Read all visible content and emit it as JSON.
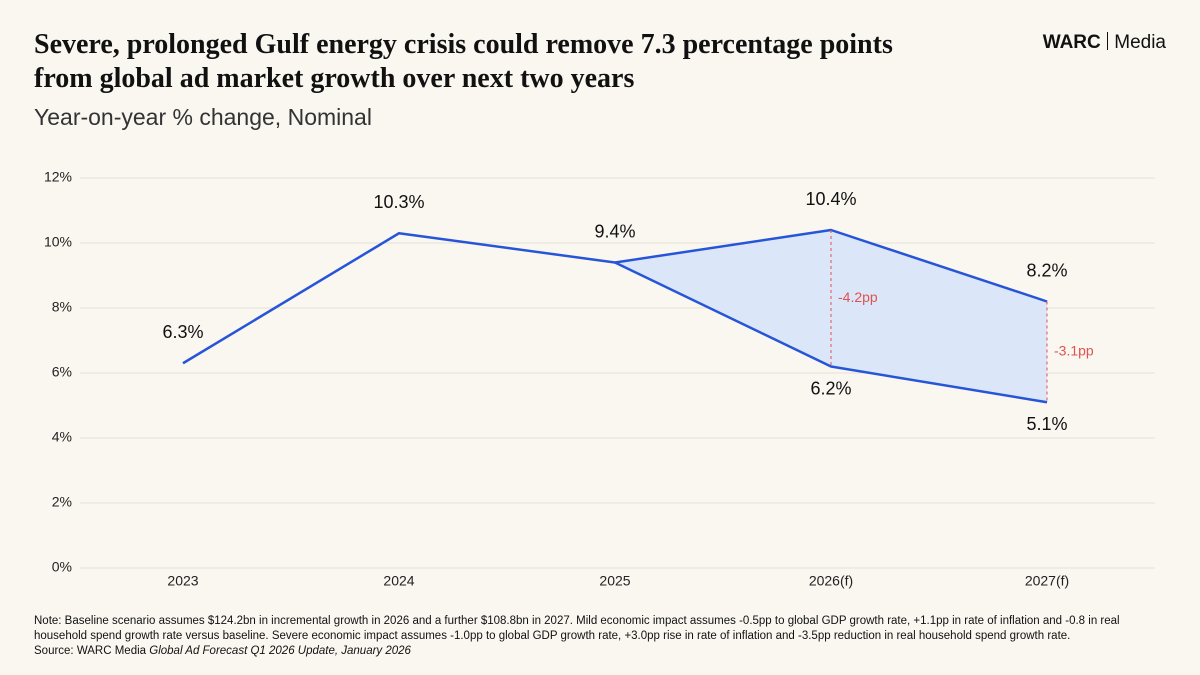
{
  "chart_data": {
    "type": "line",
    "title": "Severe, prolonged Gulf energy crisis could remove 7.3 percentage points from global ad market growth over next two years",
    "subtitle": "Year-on-year % change, Nominal",
    "brand": {
      "name": "WARC",
      "sub": "Media"
    },
    "categories": [
      "2023",
      "2024",
      "2025",
      "2026(f)",
      "2027(f)"
    ],
    "series": [
      {
        "color": "#2755d8",
        "values": [
          6.3,
          10.3,
          9.4,
          10.4,
          8.2
        ],
        "value_labels": [
          "6.3%",
          "10.3%",
          "9.4%",
          "10.4%",
          "8.2%"
        ]
      },
      {
        "color": "#2755d8",
        "values": [
          null,
          null,
          9.4,
          6.2,
          5.1
        ],
        "value_labels": [
          null,
          null,
          null,
          "6.2%",
          "5.1%"
        ]
      }
    ],
    "area_color": "#dbe7f8",
    "annotation_color": "#e0524f",
    "annotations": [
      {
        "text": "-4.2pp",
        "category": "2026(f)"
      },
      {
        "text": "-3.1pp",
        "category": "2027(f)"
      }
    ],
    "ylim": [
      0,
      12
    ],
    "yticks": [
      {
        "value": 0,
        "label": "0%"
      },
      {
        "value": 2,
        "label": "2%"
      },
      {
        "value": 4,
        "label": "4%"
      },
      {
        "value": 6,
        "label": "6%"
      },
      {
        "value": 8,
        "label": "8%"
      },
      {
        "value": 10,
        "label": "10%"
      },
      {
        "value": 12,
        "label": "12%"
      }
    ],
    "grid": true,
    "note": "Note: Baseline scenario assumes $124.2bn in incremental growth in 2026 and a further $108.8bn in 2027. Mild economic impact assumes -0.5pp to global GDP growth rate, +1.1pp in rate of inflation and -0.8 in real household spend growth rate versus baseline. Severe economic impact assumes -1.0pp to global GDP growth rate, +3.0pp rise in rate of inflation and -3.5pp reduction in real household spend growth rate.",
    "source": {
      "prefix": "Source: WARC Media",
      "title": "Global Ad Forecast Q1 2026 Update, January 2026"
    }
  }
}
